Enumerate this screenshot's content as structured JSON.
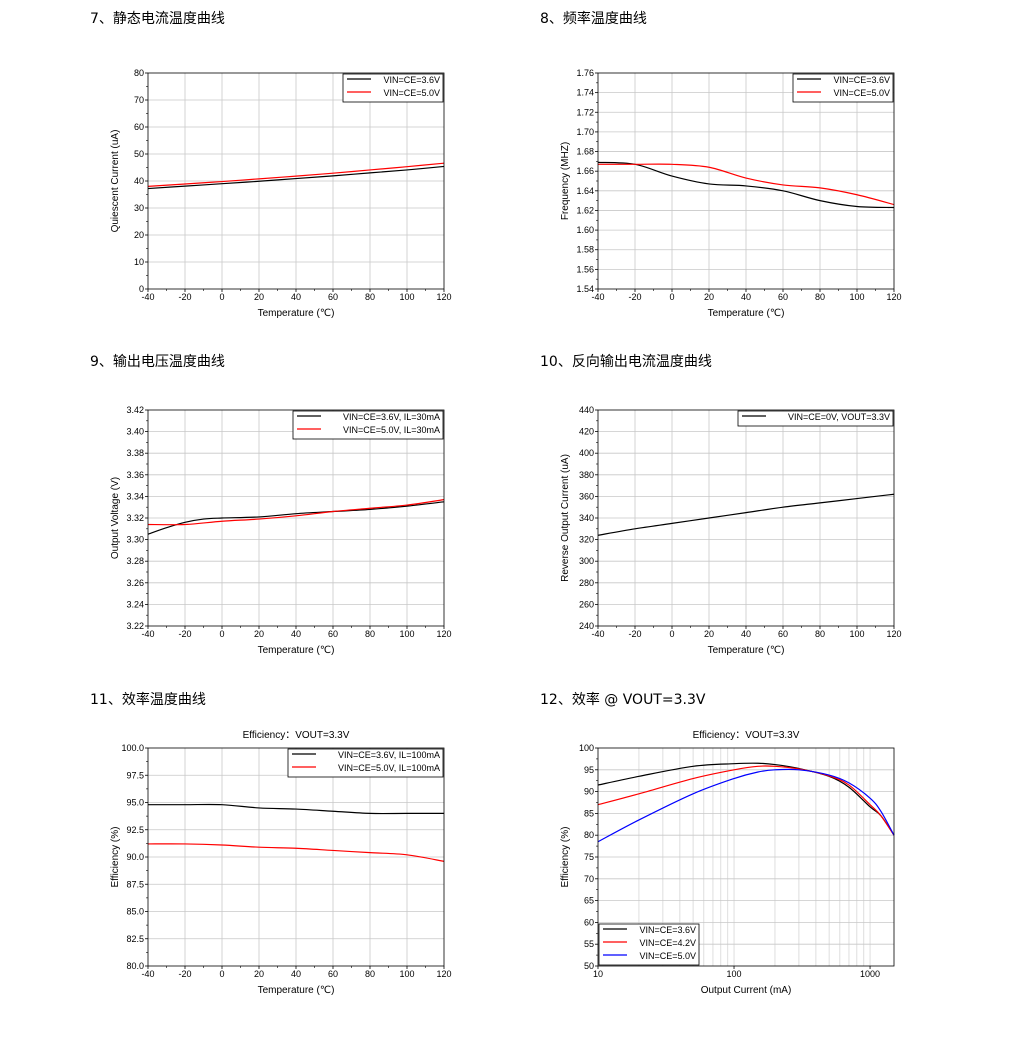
{
  "chart_data": [
    {
      "id": "c1",
      "section_title": "7、静态电流温度曲线",
      "type": "line",
      "title": "",
      "xlabel": "Temperature (℃)",
      "ylabel": "Quiescent Current (uA)",
      "xlim": [
        -40,
        120
      ],
      "ylim": [
        0,
        80
      ],
      "xticks": [
        -40,
        -20,
        0,
        20,
        40,
        60,
        80,
        100,
        120
      ],
      "yticks": [
        0,
        10,
        20,
        30,
        40,
        50,
        60,
        70,
        80
      ],
      "ytick_decimals": 0,
      "xscale": "linear",
      "grid": true,
      "legend_position": "top-right",
      "series": [
        {
          "name": "VIN=CE=3.6V",
          "color": "#000000",
          "x": [
            -40,
            -20,
            0,
            20,
            40,
            60,
            80,
            100,
            120
          ],
          "y": [
            37.2,
            38.1,
            39.0,
            39.9,
            40.9,
            41.9,
            43.0,
            44.1,
            45.4
          ]
        },
        {
          "name": "VIN=CE=5.0V",
          "color": "#ff0000",
          "x": [
            -40,
            -20,
            0,
            20,
            40,
            60,
            80,
            100,
            120
          ],
          "y": [
            38.0,
            38.9,
            39.8,
            40.8,
            41.8,
            42.9,
            44.1,
            45.3,
            46.6
          ]
        }
      ]
    },
    {
      "id": "c2",
      "section_title": "8、频率温度曲线",
      "type": "line",
      "title": "",
      "xlabel": "Temperature (℃)",
      "ylabel": "Frequency (MHZ)",
      "xlim": [
        -40,
        120
      ],
      "ylim": [
        1.54,
        1.76
      ],
      "xticks": [
        -40,
        -20,
        0,
        20,
        40,
        60,
        80,
        100,
        120
      ],
      "yticks": [
        1.54,
        1.56,
        1.58,
        1.6,
        1.62,
        1.64,
        1.66,
        1.68,
        1.7,
        1.72,
        1.74,
        1.76
      ],
      "ytick_decimals": 2,
      "xscale": "linear",
      "grid": true,
      "legend_position": "top-right",
      "series": [
        {
          "name": "VIN=CE=3.6V",
          "color": "#000000",
          "x": [
            -40,
            -20,
            0,
            20,
            40,
            60,
            80,
            100,
            120
          ],
          "y": [
            1.669,
            1.667,
            1.655,
            1.647,
            1.645,
            1.64,
            1.63,
            1.624,
            1.623
          ]
        },
        {
          "name": "VIN=CE=5.0V",
          "color": "#ff0000",
          "x": [
            -40,
            -20,
            0,
            20,
            40,
            60,
            80,
            100,
            120
          ],
          "y": [
            1.667,
            1.667,
            1.667,
            1.664,
            1.653,
            1.646,
            1.643,
            1.636,
            1.626
          ]
        }
      ]
    },
    {
      "id": "c3",
      "section_title": "9、输出电压温度曲线",
      "type": "line",
      "title": "",
      "xlabel": "Temperature (℃)",
      "ylabel": "Output Voltage (V)",
      "xlim": [
        -40,
        120
      ],
      "ylim": [
        3.22,
        3.42
      ],
      "xticks": [
        -40,
        -20,
        0,
        20,
        40,
        60,
        80,
        100,
        120
      ],
      "yticks": [
        3.22,
        3.24,
        3.26,
        3.28,
        3.3,
        3.32,
        3.34,
        3.36,
        3.38,
        3.4,
        3.42
      ],
      "ytick_decimals": 2,
      "xscale": "linear",
      "grid": true,
      "legend_position": "top-right",
      "series": [
        {
          "name": "VIN=CE=3.6V, IL=30mA",
          "color": "#000000",
          "x": [
            -40,
            -30,
            -20,
            -10,
            0,
            20,
            40,
            60,
            80,
            100,
            120
          ],
          "y": [
            3.305,
            3.311,
            3.316,
            3.319,
            3.32,
            3.321,
            3.324,
            3.326,
            3.328,
            3.331,
            3.335
          ]
        },
        {
          "name": "VIN=CE=5.0V, IL=30mA",
          "color": "#ff0000",
          "x": [
            -40,
            -20,
            0,
            20,
            40,
            60,
            80,
            100,
            120
          ],
          "y": [
            3.314,
            3.314,
            3.317,
            3.319,
            3.322,
            3.326,
            3.329,
            3.332,
            3.337
          ]
        }
      ]
    },
    {
      "id": "c4",
      "section_title": "10、反向输出电流温度曲线",
      "type": "line",
      "title": "",
      "xlabel": "Temperature (℃)",
      "ylabel": "Reverse Output Current (uA)",
      "xlim": [
        -40,
        120
      ],
      "ylim": [
        240,
        440
      ],
      "xticks": [
        -40,
        -20,
        0,
        20,
        40,
        60,
        80,
        100,
        120
      ],
      "yticks": [
        240,
        260,
        280,
        300,
        320,
        340,
        360,
        380,
        400,
        420,
        440
      ],
      "ytick_decimals": 0,
      "xscale": "linear",
      "grid": true,
      "legend_position": "top-right",
      "series": [
        {
          "name": "VIN=CE=0V, VOUT=3.3V",
          "color": "#000000",
          "x": [
            -40,
            -20,
            0,
            20,
            40,
            60,
            80,
            100,
            120
          ],
          "y": [
            324,
            330,
            335,
            340,
            345,
            350,
            354,
            358,
            362
          ]
        }
      ]
    },
    {
      "id": "c5",
      "section_title": "11、效率温度曲线",
      "type": "line",
      "title": "Efficiency：VOUT=3.3V",
      "xlabel": "Temperature (℃)",
      "ylabel": "Efficiency (%)",
      "xlim": [
        -40,
        120
      ],
      "ylim": [
        80,
        100
      ],
      "xticks": [
        -40,
        -20,
        0,
        20,
        40,
        60,
        80,
        100,
        120
      ],
      "yticks": [
        80.0,
        82.5,
        85.0,
        87.5,
        90.0,
        92.5,
        95.0,
        97.5,
        100.0
      ],
      "ytick_decimals": 1,
      "xscale": "linear",
      "grid": true,
      "legend_position": "top-right",
      "series": [
        {
          "name": "VIN=CE=3.6V, IL=100mA",
          "color": "#000000",
          "x": [
            -40,
            -20,
            0,
            20,
            40,
            60,
            80,
            100,
            120
          ],
          "y": [
            94.8,
            94.8,
            94.8,
            94.5,
            94.4,
            94.2,
            94.0,
            94.0,
            94.0
          ]
        },
        {
          "name": "VIN=CE=5.0V, IL=100mA",
          "color": "#ff0000",
          "x": [
            -40,
            -20,
            0,
            20,
            40,
            60,
            80,
            100,
            120
          ],
          "y": [
            91.2,
            91.2,
            91.1,
            90.9,
            90.8,
            90.6,
            90.4,
            90.2,
            89.6
          ]
        }
      ]
    },
    {
      "id": "c6",
      "section_title": "12、效率 @ VOUT=3.3V",
      "type": "line",
      "title": "Efficiency：VOUT=3.3V",
      "xlabel": "Output Current (mA)",
      "ylabel": "Efficiency (%)",
      "xlim": [
        10,
        1500
      ],
      "ylim": [
        50,
        100
      ],
      "xticks": [
        10,
        100,
        1000
      ],
      "yticks": [
        50,
        55,
        60,
        65,
        70,
        75,
        80,
        85,
        90,
        95,
        100
      ],
      "ytick_decimals": 0,
      "xscale": "log",
      "grid": true,
      "legend_position": "bottom-left",
      "series": [
        {
          "name": "VIN=CE=3.6V",
          "color": "#000000",
          "x": [
            10,
            20,
            50,
            100,
            150,
            200,
            300,
            500,
            700,
            1000,
            1200,
            1500
          ],
          "y": [
            91.5,
            93.5,
            95.8,
            96.4,
            96.5,
            96.2,
            95.3,
            93.5,
            91.0,
            86.5,
            84.5,
            80.0
          ]
        },
        {
          "name": "VIN=CE=4.2V",
          "color": "#ff0000",
          "x": [
            10,
            20,
            50,
            100,
            150,
            200,
            300,
            500,
            700,
            1000,
            1200,
            1500
          ],
          "y": [
            87.0,
            89.5,
            93.0,
            95.0,
            95.8,
            95.8,
            95.2,
            93.6,
            91.5,
            87.0,
            84.5,
            80.0
          ]
        },
        {
          "name": "VIN=CE=5.0V",
          "color": "#0000ff",
          "x": [
            10,
            20,
            50,
            100,
            150,
            200,
            300,
            500,
            700,
            1000,
            1200,
            1500
          ],
          "y": [
            78.5,
            83.5,
            89.5,
            93.0,
            94.5,
            95.0,
            95.0,
            93.8,
            92.0,
            88.5,
            85.5,
            80.0
          ]
        }
      ]
    }
  ]
}
